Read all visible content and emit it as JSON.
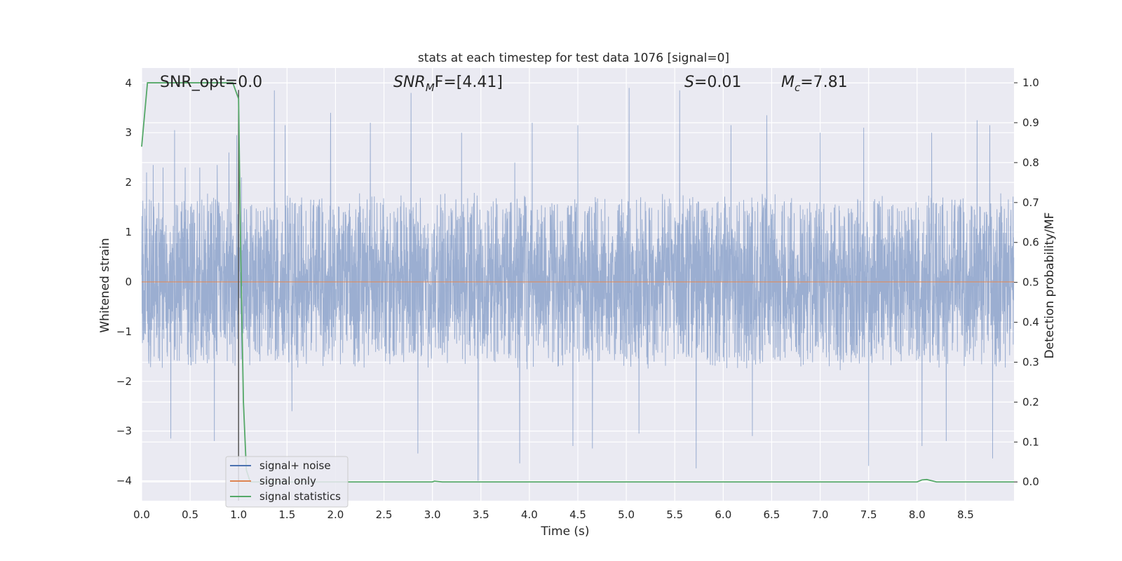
{
  "chart_data": {
    "type": "line",
    "title": "stats at each timestep for test data 1076 [signal=0]",
    "xlabel": "Time (s)",
    "ylabel": "Whitened strain",
    "y2label": "Detection probability/MF",
    "xlim": [
      0.0,
      9.0
    ],
    "ylim": [
      -4.4,
      4.3
    ],
    "y2lim": [
      -0.047,
      1.037
    ],
    "x_ticks": [
      "0.0",
      "0.5",
      "1.0",
      "1.5",
      "2.0",
      "2.5",
      "3.0",
      "3.5",
      "4.0",
      "4.5",
      "5.0",
      "5.5",
      "6.0",
      "6.5",
      "7.0",
      "7.5",
      "8.0",
      "8.5"
    ],
    "y_ticks": [
      "4",
      "3",
      "2",
      "1",
      "0",
      "−1",
      "−2",
      "−3",
      "−4"
    ],
    "y2_ticks": [
      "1.0",
      "0.9",
      "0.8",
      "0.7",
      "0.6",
      "0.5",
      "0.4",
      "0.3",
      "0.2",
      "0.1",
      "0.0"
    ],
    "grid": true,
    "legend_position": "lower-left",
    "annotations": {
      "snr_opt": "SNR_opt=0.0",
      "snr_mf_main": "SNR",
      "snr_mf_sub": "M",
      "snr_mf_rest": "F=[4.41]",
      "s_main": "S",
      "s_rest": "=0.01",
      "mc_main": "M",
      "mc_sub": "c",
      "mc_rest": "=7.81"
    },
    "vertical_marker_x": 1.0,
    "noise": {
      "sample_rate": 512,
      "envelope": 1.45,
      "spikes": [
        {
          "x": 0.05,
          "y": 2.2
        },
        {
          "x": 0.12,
          "y": 2.35
        },
        {
          "x": 0.22,
          "y": 2.3
        },
        {
          "x": 0.3,
          "y": 2.0
        },
        {
          "x": 0.34,
          "y": 3.05
        },
        {
          "x": 0.45,
          "y": 2.3
        },
        {
          "x": 0.6,
          "y": 2.3
        },
        {
          "x": 0.78,
          "y": 2.35
        },
        {
          "x": 0.9,
          "y": 2.6
        },
        {
          "x": 0.98,
          "y": 2.95
        },
        {
          "x": 1.03,
          "y": 2.1
        },
        {
          "x": 1.37,
          "y": 3.85
        },
        {
          "x": 1.48,
          "y": 3.15
        },
        {
          "x": 1.95,
          "y": 3.4
        },
        {
          "x": 2.36,
          "y": 3.2
        },
        {
          "x": 2.78,
          "y": 3.8
        },
        {
          "x": 3.3,
          "y": 3.0
        },
        {
          "x": 3.85,
          "y": 2.4
        },
        {
          "x": 4.03,
          "y": 3.2
        },
        {
          "x": 4.5,
          "y": 3.15
        },
        {
          "x": 5.03,
          "y": 3.9
        },
        {
          "x": 5.55,
          "y": 3.85
        },
        {
          "x": 6.08,
          "y": 3.15
        },
        {
          "x": 6.45,
          "y": 3.35
        },
        {
          "x": 7.0,
          "y": 3.0
        },
        {
          "x": 7.45,
          "y": 3.1
        },
        {
          "x": 8.15,
          "y": 3.0
        },
        {
          "x": 8.62,
          "y": 3.25
        },
        {
          "x": 8.75,
          "y": 3.15
        },
        {
          "x": 0.3,
          "y": -3.15
        },
        {
          "x": 0.75,
          "y": -3.2
        },
        {
          "x": 1.0,
          "y": -2.65
        },
        {
          "x": 1.55,
          "y": -2.6
        },
        {
          "x": 2.85,
          "y": -3.45
        },
        {
          "x": 3.47,
          "y": -4.0
        },
        {
          "x": 3.9,
          "y": -3.65
        },
        {
          "x": 4.45,
          "y": -3.3
        },
        {
          "x": 4.65,
          "y": -3.35
        },
        {
          "x": 5.13,
          "y": -3.05
        },
        {
          "x": 5.72,
          "y": -3.75
        },
        {
          "x": 6.3,
          "y": -3.1
        },
        {
          "x": 7.5,
          "y": -3.7
        },
        {
          "x": 8.05,
          "y": -3.3
        },
        {
          "x": 8.3,
          "y": -3.2
        },
        {
          "x": 8.78,
          "y": -3.55
        }
      ]
    },
    "series": [
      {
        "name": "signal+ noise",
        "color": "#4c72b0",
        "y_axis": "left",
        "values_generated": true
      },
      {
        "name": "signal only",
        "color": "#dd8452",
        "y_axis": "left",
        "x": [
          0.0,
          9.0
        ],
        "values": [
          0.0,
          0.0
        ]
      },
      {
        "name": "signal statistics",
        "color": "#55a868",
        "y_axis": "right",
        "x": [
          0.0,
          0.06,
          0.1,
          0.2,
          0.5,
          0.8,
          0.94,
          1.0,
          1.02,
          1.05,
          1.08,
          1.12,
          1.2,
          3.0,
          3.02,
          3.1,
          7.95,
          8.0,
          8.05,
          8.1,
          8.15,
          8.2,
          9.0
        ],
        "values": [
          0.84,
          1.0,
          1.0,
          1.0,
          1.0,
          1.0,
          1.0,
          0.96,
          0.6,
          0.2,
          0.03,
          0.0,
          0.0,
          0.0,
          0.002,
          0.0,
          0.0,
          0.0,
          0.005,
          0.006,
          0.003,
          0.0,
          0.0
        ]
      }
    ]
  }
}
